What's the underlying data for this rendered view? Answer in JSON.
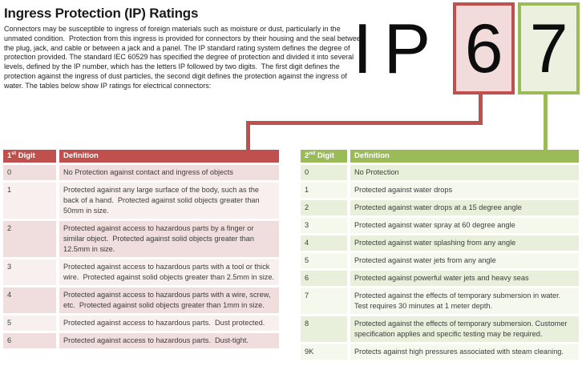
{
  "page": {
    "title": "Ingress Protection (IP) Ratings",
    "intro": "Connectors may be susceptible to ingress of foreign materials such as moisture or dust, particularly in the unmated condition.  Protection from this ingress is provided for connectors by their housing and the seal between the plug, jack, and cable or between a jack and a panel. The IP standard rating system defines the degree of protection provided. The standard IEC 60529 has specified the degree of protection and divided it into several levels, defined by the IP number, which has the letters IP followed by two digits.  The first digit defines the protection against the ingress of dust particles, the second digit defines the protection against the ingress of water. The tables below show IP ratings for electrical connectors:"
  },
  "ip_graphic": {
    "letter_i": "I",
    "letter_p": "P",
    "first_digit": "6",
    "second_digit": "7"
  },
  "colors": {
    "red_accent": "#c0504d",
    "red_header": "#c0504d",
    "red_box_fill": "#f2dcdb",
    "red_band_a": "#efdedd",
    "red_band_b": "#f8f0ef",
    "green_accent": "#9bbb59",
    "green_header": "#9bbb59",
    "green_box_fill": "#ebf1de",
    "green_band_a": "#e8f0db",
    "green_band_b": "#f4f8ed"
  },
  "tables": [
    {
      "header": {
        "digit_prefix": "1",
        "digit_ordinal": "st",
        "digit_label": " Digit",
        "definition_label": "Definition"
      },
      "rows": [
        {
          "digit": "0",
          "definition": "No Protection against contact and ingress of objects"
        },
        {
          "digit": "1",
          "definition": "Protected against any large surface of the body, such as the back of a hand.  Protected against solid objects greater than 50mm in size."
        },
        {
          "digit": "2",
          "definition": "Protected against access to hazardous parts by a finger or similar object.  Protected against solid objects greater than 12.5mm in size."
        },
        {
          "digit": "3",
          "definition": "Protected against access to hazardous parts with a tool or thick wire.  Protected against solid objects greater than 2.5mm in size."
        },
        {
          "digit": "4",
          "definition": "Protected against access to hazardous parts with a wire, screw, etc.  Protected against solid objects greater than 1mm in size."
        },
        {
          "digit": "5",
          "definition": "Protected against access to hazardous parts.  Dust protected."
        },
        {
          "digit": "6",
          "definition": "Protected against access to hazardous parts.  Dust-tight."
        }
      ]
    },
    {
      "header": {
        "digit_prefix": "2",
        "digit_ordinal": "nd",
        "digit_label": " Digit",
        "definition_label": "Definition"
      },
      "rows": [
        {
          "digit": "0",
          "definition": "No Protection"
        },
        {
          "digit": "1",
          "definition": "Protected against water drops"
        },
        {
          "digit": "2",
          "definition": "Protected against water drops at a 15 degree angle"
        },
        {
          "digit": "3",
          "definition": "Protected against water spray at 60 degree angle"
        },
        {
          "digit": "4",
          "definition": "Protected against water splashing from any angle"
        },
        {
          "digit": "5",
          "definition": "Protected against water jets from any angle"
        },
        {
          "digit": "6",
          "definition": "Protected against powerful water jets and heavy seas"
        },
        {
          "digit": "7",
          "definition": "Protected against the effects of temporary submersion in water.  Test requires 30 minutes at 1 meter depth."
        },
        {
          "digit": "8",
          "definition": "Protected against the effects of temporary submersion. Customer specification applies and specific testing may be required."
        },
        {
          "digit": "9K",
          "definition": "Protects against high pressures associated with steam cleaning."
        }
      ]
    }
  ]
}
